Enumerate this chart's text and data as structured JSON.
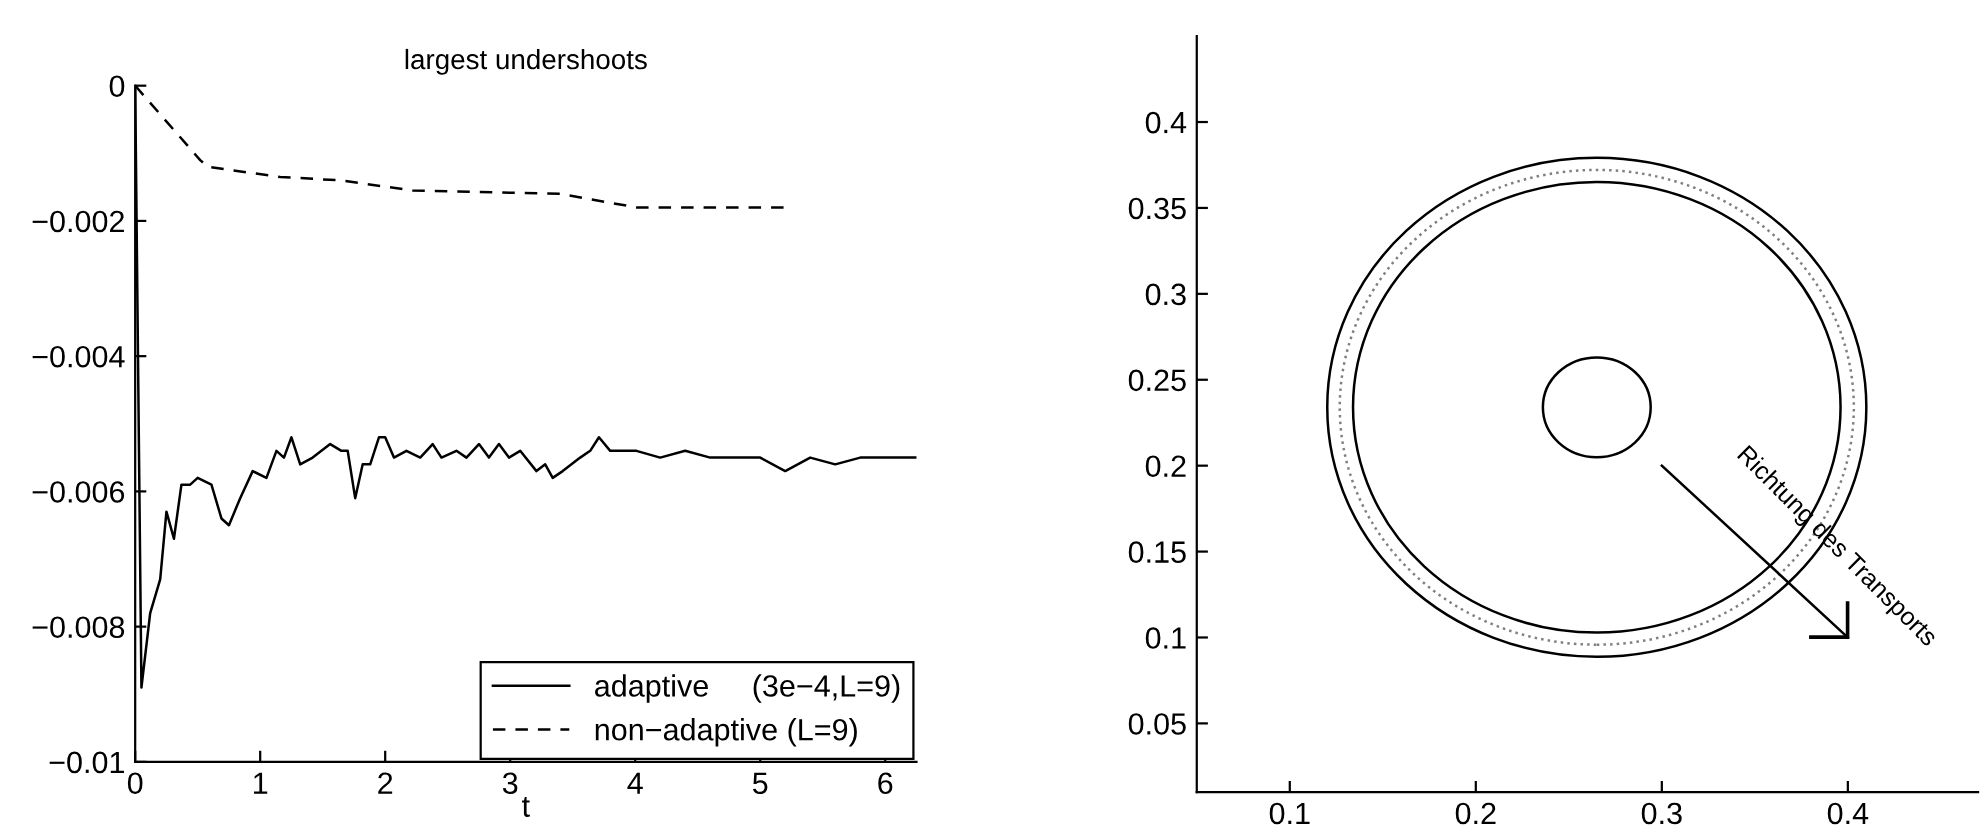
{
  "chart_data": [
    {
      "type": "line",
      "title": "largest undershoots",
      "xlabel": "t",
      "xlim": [
        0,
        6.25
      ],
      "xticks": [
        0,
        1,
        2,
        3,
        4,
        5,
        6
      ],
      "ylim": [
        -0.01,
        0
      ],
      "yticks": [
        {
          "value": -0.01,
          "label": "−0.01"
        },
        {
          "value": -0.008,
          "label": "−0.008"
        },
        {
          "value": -0.006,
          "label": "−0.006"
        },
        {
          "value": -0.004,
          "label": "−0.004"
        },
        {
          "value": -0.002,
          "label": "−0.002"
        },
        0
      ],
      "grid": false,
      "legend": "bottom right",
      "series": [
        {
          "name": "adaptive     (3e−4,L=9)",
          "color": "#000000",
          "line_style": "solid",
          "x": [
            0,
            0.05,
            0.12,
            0.2,
            0.25,
            0.31,
            0.37,
            0.44,
            0.5,
            0.61,
            0.69,
            0.75,
            0.84,
            0.94,
            1.05,
            1.13,
            1.19,
            1.25,
            1.32,
            1.42,
            1.56,
            1.65,
            1.7,
            1.76,
            1.82,
            1.88,
            1.95,
            2.0,
            2.07,
            2.17,
            2.28,
            2.38,
            2.45,
            2.57,
            2.65,
            2.75,
            2.83,
            2.91,
            2.99,
            3.08,
            3.21,
            3.28,
            3.34,
            3.42,
            3.56,
            3.64,
            3.71,
            3.8,
            3.9,
            4.01,
            4.2,
            4.4,
            4.6,
            4.8,
            5.0,
            5.2,
            5.4,
            5.6,
            5.8,
            6.0,
            6.25
          ],
          "values": [
            0,
            -0.0089,
            -0.0078,
            -0.0073,
            -0.0063,
            -0.0067,
            -0.0059,
            -0.0059,
            -0.0058,
            -0.0059,
            -0.0064,
            -0.0065,
            -0.0061,
            -0.0057,
            -0.0058,
            -0.0054,
            -0.0055,
            -0.0052,
            -0.0056,
            -0.0055,
            -0.0053,
            -0.0054,
            -0.0054,
            -0.0061,
            -0.0056,
            -0.0056,
            -0.0052,
            -0.0052,
            -0.0055,
            -0.0054,
            -0.0055,
            -0.0053,
            -0.0055,
            -0.0054,
            -0.0055,
            -0.0053,
            -0.0055,
            -0.0053,
            -0.0055,
            -0.0054,
            -0.0057,
            -0.0056,
            -0.0058,
            -0.0057,
            -0.0055,
            -0.0054,
            -0.0052,
            -0.0054,
            -0.0054,
            -0.0054,
            -0.0055,
            -0.0054,
            -0.0055,
            -0.0055,
            -0.0055,
            -0.0057,
            -0.0055,
            -0.0056,
            -0.0055,
            -0.0055,
            -0.0055
          ]
        },
        {
          "name": "non−adaptive (L=9)",
          "color": "#000000",
          "line_style": "dashed",
          "x": [
            0,
            0.52,
            0.58,
            1.16,
            1.64,
            2.22,
            3.4,
            4.01,
            4.6,
            5.2
          ],
          "values": [
            0,
            -0.0011,
            -0.0012,
            -0.00135,
            -0.0014,
            -0.00155,
            -0.0016,
            -0.0018,
            -0.0018,
            -0.0018
          ]
        }
      ]
    },
    {
      "type": "line",
      "xlim": [
        0.05,
        0.47
      ],
      "xticks": [
        0.1,
        0.2,
        0.3,
        0.4
      ],
      "ylim": [
        0.01,
        0.45
      ],
      "yticks": [
        0.05,
        0.1,
        0.15,
        0.2,
        0.25,
        0.3,
        0.35,
        0.4
      ],
      "annotations": [
        "Richtung des Transports"
      ],
      "series": [
        {
          "color": "#000000",
          "line_style": "solid",
          "x": [
            0.3,
            0.4
          ],
          "values": [
            0.2,
            0.1
          ]
        }
      ]
    }
  ]
}
